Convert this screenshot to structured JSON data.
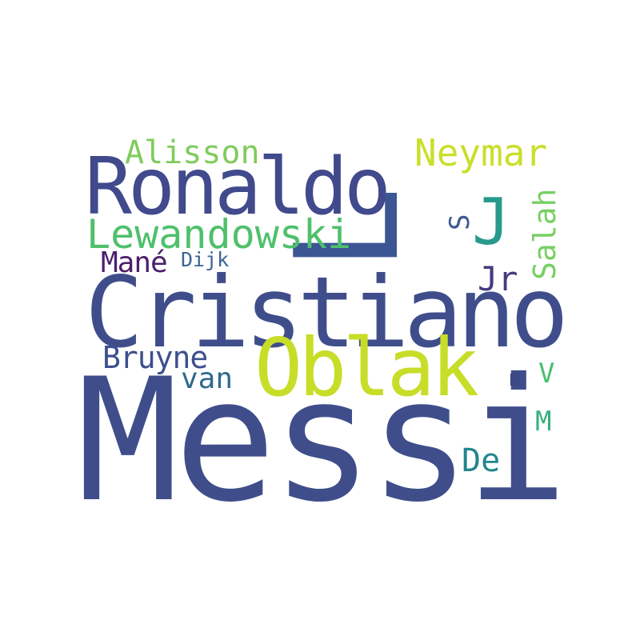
{
  "word_cloud": {
    "words": [
      {
        "text": "Messi",
        "color": "#3f4e8b"
      },
      {
        "text": "Cristiano",
        "color": "#3f4e8b"
      },
      {
        "text": "Ronaldo",
        "color": "#414a8c"
      },
      {
        "text": "Oblak",
        "color": "#c7dd28"
      },
      {
        "text": "L",
        "color": "#3b5693"
      },
      {
        "text": "Neymar",
        "color": "#c9df2a"
      },
      {
        "text": "Lewandowski",
        "color": "#4fc06c"
      },
      {
        "text": "Alisson",
        "color": "#7fcc5c"
      },
      {
        "text": "J",
        "color": "#279a8d"
      },
      {
        "text": "Salah",
        "color": "#78cf63"
      },
      {
        "text": "S",
        "color": "#3c5b8f"
      },
      {
        "text": "Jr",
        "color": "#433c7f"
      },
      {
        "text": "Mané",
        "color": "#4d1f6b"
      },
      {
        "text": "Dijk",
        "color": "#3d6494"
      },
      {
        "text": "Bruyne",
        "color": "#3e4f8e"
      },
      {
        "text": "van",
        "color": "#2f6a8e"
      },
      {
        "text": ".",
        "color": "#3b4986"
      },
      {
        "text": "V",
        "color": "#49bf72"
      },
      {
        "text": "M",
        "color": "#37b07f"
      },
      {
        "text": "De",
        "color": "#22868d"
      }
    ]
  }
}
